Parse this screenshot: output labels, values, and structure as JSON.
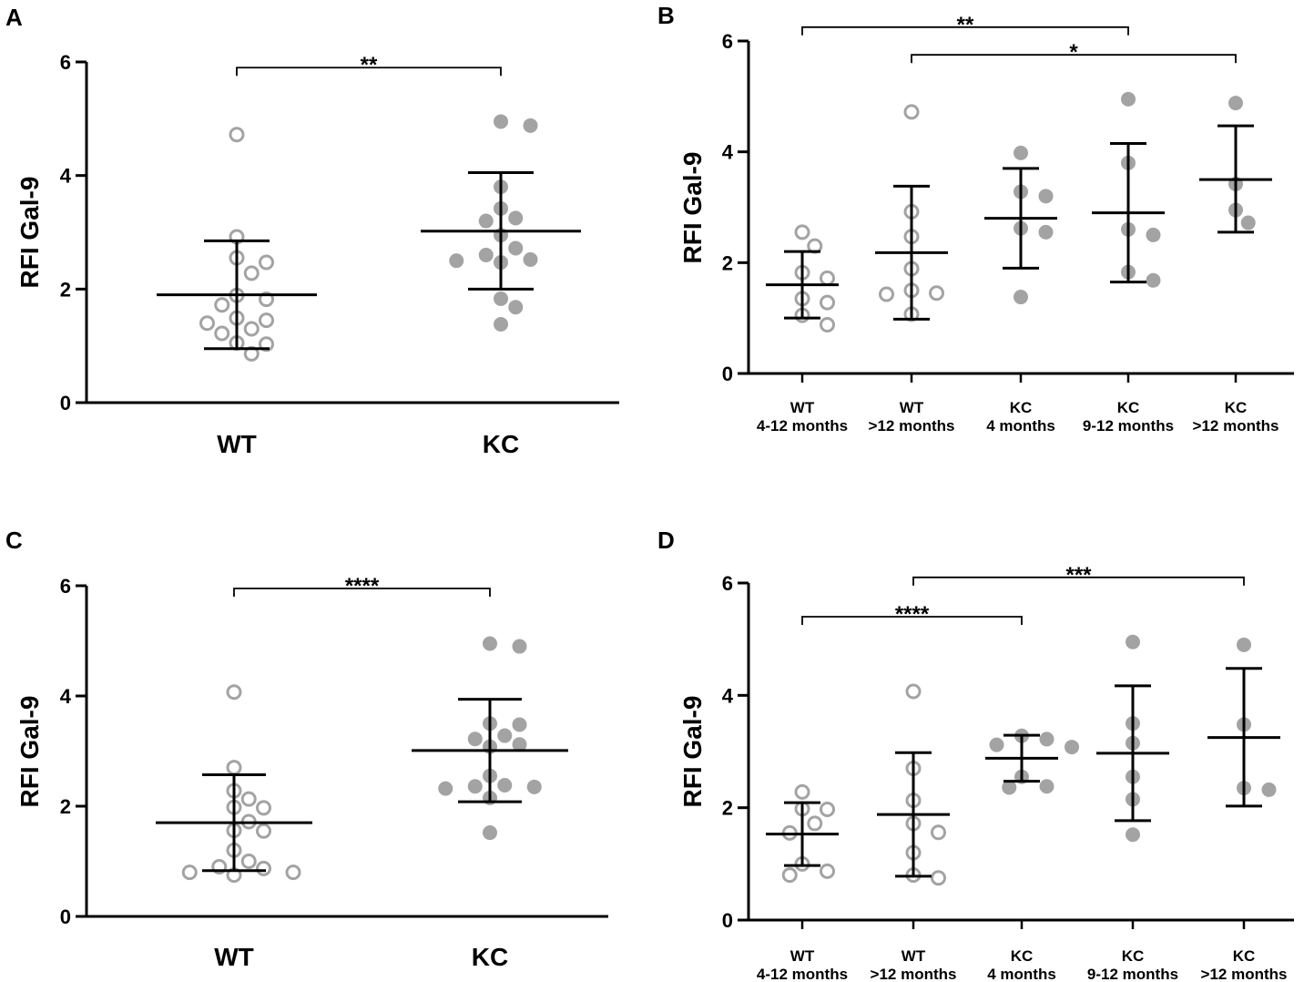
{
  "chart_data": [
    {
      "panel": "A",
      "type": "scatter",
      "ylabel": "RFI Gal-9",
      "ylim": [
        0,
        6
      ],
      "yticks": [
        "0",
        "2",
        "4",
        "6"
      ],
      "groups": [
        {
          "label": [
            "WT"
          ],
          "style": "open",
          "values": [
            4.72,
            2.92,
            2.55,
            2.47,
            2.28,
            1.89,
            1.82,
            1.72,
            1.49,
            1.45,
            1.4,
            1.3,
            1.22,
            1.05,
            1.03,
            0.86
          ],
          "mean": 1.9,
          "sd_low": 0.95,
          "sd_high": 2.85
        },
        {
          "label": [
            "KC"
          ],
          "style": "filled",
          "values": [
            4.95,
            4.88,
            3.8,
            3.42,
            3.25,
            3.2,
            2.95,
            2.72,
            2.6,
            2.52,
            2.5,
            2.47,
            1.83,
            1.68,
            1.38
          ],
          "mean": 3.02,
          "sd_low": 2.0,
          "sd_high": 4.05
        }
      ],
      "brackets": [
        {
          "from": 0,
          "to": 1,
          "label": "**",
          "y": 5.9
        }
      ]
    },
    {
      "panel": "B",
      "type": "scatter",
      "ylabel": "RFI Gal-9",
      "ylim": [
        0,
        6
      ],
      "yticks": [
        "0",
        "2",
        "4",
        "6"
      ],
      "groups": [
        {
          "label": [
            "WT",
            "4-12 months"
          ],
          "style": "open",
          "values": [
            2.55,
            2.3,
            1.82,
            1.72,
            1.35,
            1.28,
            1.05,
            0.88
          ],
          "mean": 1.6,
          "sd_low": 1.0,
          "sd_high": 2.2
        },
        {
          "label": [
            "WT",
            ">12 months"
          ],
          "style": "open",
          "values": [
            4.72,
            2.92,
            2.47,
            1.89,
            1.5,
            1.45,
            1.43,
            1.07
          ],
          "mean": 2.18,
          "sd_low": 0.98,
          "sd_high": 3.38
        },
        {
          "label": [
            "KC",
            "4 months"
          ],
          "style": "filled",
          "values": [
            3.98,
            3.28,
            3.2,
            2.62,
            2.55,
            1.38
          ],
          "mean": 2.8,
          "sd_low": 1.9,
          "sd_high": 3.7
        },
        {
          "label": [
            "KC",
            "9-12 months"
          ],
          "style": "filled",
          "values": [
            4.95,
            3.8,
            2.6,
            2.5,
            1.83,
            1.68
          ],
          "mean": 2.9,
          "sd_low": 1.65,
          "sd_high": 4.15
        },
        {
          "label": [
            "KC",
            ">12 months"
          ],
          "style": "filled",
          "values": [
            4.88,
            3.42,
            2.95,
            2.72
          ],
          "mean": 3.5,
          "sd_low": 2.55,
          "sd_high": 4.47
        }
      ],
      "brackets": [
        {
          "from": 0,
          "to": 3,
          "label": "**",
          "y": 6.25
        },
        {
          "from": 1,
          "to": 4,
          "label": "*",
          "y": 5.75
        }
      ]
    },
    {
      "panel": "C",
      "type": "scatter",
      "ylabel": "RFI Gal-9",
      "ylim": [
        0,
        6
      ],
      "yticks": [
        "0",
        "2",
        "4",
        "6"
      ],
      "groups": [
        {
          "label": [
            "WT"
          ],
          "style": "open",
          "values": [
            4.07,
            2.7,
            2.28,
            2.13,
            1.98,
            1.97,
            1.72,
            1.56,
            1.55,
            1.2,
            1.0,
            0.9,
            0.87,
            0.8,
            0.8,
            0.75
          ],
          "mean": 1.7,
          "sd_low": 0.83,
          "sd_high": 2.57
        },
        {
          "label": [
            "KC"
          ],
          "style": "filled",
          "values": [
            4.95,
            4.9,
            3.5,
            3.48,
            3.28,
            3.22,
            3.12,
            3.08,
            2.55,
            2.38,
            2.36,
            2.35,
            2.32,
            2.15,
            1.52
          ],
          "mean": 3.01,
          "sd_low": 2.08,
          "sd_high": 3.94
        }
      ],
      "brackets": [
        {
          "from": 0,
          "to": 1,
          "label": "****",
          "y": 5.95
        }
      ]
    },
    {
      "panel": "D",
      "type": "scatter",
      "ylabel": "RFI Gal-9",
      "ylim": [
        0,
        6
      ],
      "yticks": [
        "0",
        "2",
        "4",
        "6"
      ],
      "groups": [
        {
          "label": [
            "WT",
            "4-12 months"
          ],
          "style": "open",
          "values": [
            2.28,
            1.98,
            1.97,
            1.72,
            1.55,
            1.0,
            0.87,
            0.8
          ],
          "mean": 1.53,
          "sd_low": 0.97,
          "sd_high": 2.09
        },
        {
          "label": [
            "WT",
            ">12 months"
          ],
          "style": "open",
          "values": [
            4.07,
            2.7,
            2.13,
            1.72,
            1.56,
            1.2,
            0.8,
            0.75
          ],
          "mean": 1.88,
          "sd_low": 0.78,
          "sd_high": 2.98
        },
        {
          "label": [
            "KC",
            "4 months"
          ],
          "style": "filled",
          "values": [
            3.28,
            3.22,
            3.12,
            3.08,
            2.55,
            2.38,
            2.36
          ],
          "mean": 2.88,
          "sd_low": 2.47,
          "sd_high": 3.29
        },
        {
          "label": [
            "KC",
            "9-12 months"
          ],
          "style": "filled",
          "values": [
            4.95,
            3.5,
            3.15,
            2.55,
            2.15,
            1.52
          ],
          "mean": 2.97,
          "sd_low": 1.77,
          "sd_high": 4.17
        },
        {
          "label": [
            "KC",
            ">12 months"
          ],
          "style": "filled",
          "values": [
            4.9,
            3.48,
            2.35,
            2.32
          ],
          "mean": 3.25,
          "sd_low": 2.03,
          "sd_high": 4.48
        }
      ],
      "brackets": [
        {
          "from": 0,
          "to": 2,
          "label": "****",
          "y": 5.4
        },
        {
          "from": 1,
          "to": 4,
          "label": "***",
          "y": 6.1
        }
      ]
    }
  ],
  "colors": {
    "marker": "#a3a3a3",
    "axis": "#000000",
    "background": "#ffffff"
  }
}
